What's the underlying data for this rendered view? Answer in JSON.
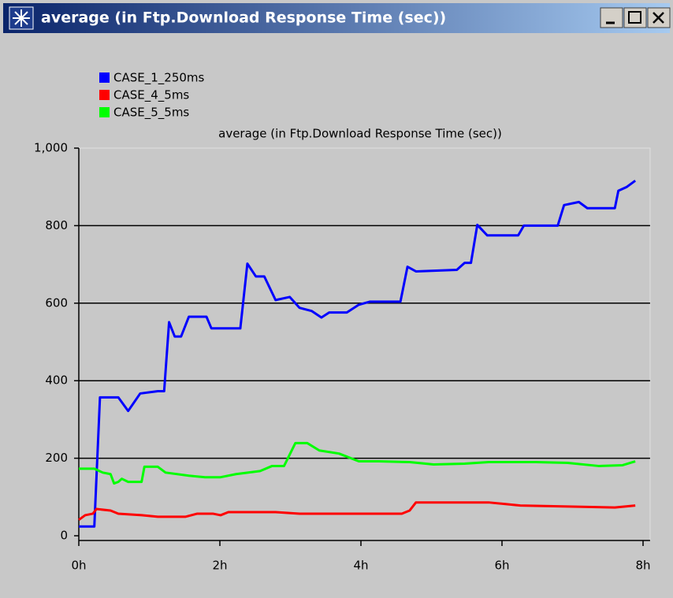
{
  "window": {
    "title": "average (in Ftp.Download Response Time (sec))"
  },
  "chart_data": {
    "type": "line",
    "title": "average (in Ftp.Download Response Time (sec))",
    "xlim": [
      0,
      8.1
    ],
    "xticks": [
      {
        "value": 0,
        "label": "0h"
      },
      {
        "value": 2,
        "label": "2h"
      },
      {
        "value": 4,
        "label": "4h"
      },
      {
        "value": 6,
        "label": "6h"
      },
      {
        "value": 8,
        "label": "8h"
      }
    ],
    "ylim": [
      0,
      1000
    ],
    "yticks": [
      0,
      200,
      400,
      600,
      800,
      {
        "value": 1000,
        "label": "1,000"
      }
    ],
    "grid": true,
    "legend": "top-left",
    "series": [
      {
        "name": "CASE_1_250ms",
        "color": "#0000ff",
        "x": [
          0,
          0.22,
          0.3,
          0.56,
          0.7,
          0.87,
          1.12,
          1.21,
          1.28,
          1.36,
          1.45,
          1.56,
          1.81,
          1.88,
          2.29,
          2.39,
          2.51,
          2.63,
          2.79,
          2.99,
          3.13,
          3.3,
          3.44,
          3.55,
          3.8,
          3.97,
          4.13,
          4.56,
          4.66,
          4.78,
          5.36,
          5.47,
          5.56,
          5.65,
          5.79,
          6.23,
          6.31,
          6.79,
          6.88,
          7.09,
          7.21,
          7.6,
          7.65,
          7.77,
          7.89
        ],
        "values": [
          24,
          24,
          357,
          357,
          322,
          367,
          373,
          373,
          551,
          514,
          514,
          565,
          565,
          535,
          535,
          702,
          669,
          669,
          608,
          616,
          588,
          580,
          563,
          576,
          576,
          596,
          604,
          604,
          694,
          682,
          686,
          704,
          704,
          802,
          775,
          775,
          800,
          800,
          853,
          861,
          845,
          845,
          890,
          900,
          916
        ]
      },
      {
        "name": "CASE_4_5ms",
        "color": "#ff0000",
        "x": [
          0,
          0.09,
          0.2,
          0.25,
          0.45,
          0.56,
          0.89,
          1.12,
          1.51,
          1.68,
          1.9,
          2.01,
          2.12,
          2.79,
          3.13,
          4.58,
          4.69,
          4.78,
          5.81,
          6.26,
          7.6,
          7.89
        ],
        "values": [
          41,
          53,
          57,
          69,
          65,
          57,
          53,
          49,
          49,
          57,
          57,
          53,
          61,
          61,
          57,
          57,
          65,
          86,
          86,
          78,
          73,
          78
        ]
      },
      {
        "name": "CASE_5_5ms",
        "color": "#00ff00",
        "x": [
          0,
          0.22,
          0.34,
          0.45,
          0.5,
          0.56,
          0.61,
          0.7,
          0.89,
          0.93,
          1.12,
          1.23,
          1.56,
          1.79,
          2.01,
          2.23,
          2.57,
          2.74,
          2.91,
          3.07,
          3.24,
          3.41,
          3.69,
          3.97,
          4.25,
          4.69,
          5.03,
          5.47,
          5.81,
          6.48,
          6.93,
          7.37,
          7.71,
          7.89
        ],
        "values": [
          173,
          173,
          163,
          159,
          135,
          139,
          147,
          139,
          139,
          178,
          178,
          163,
          155,
          151,
          151,
          159,
          167,
          180,
          180,
          239,
          239,
          220,
          212,
          192,
          192,
          190,
          184,
          186,
          190,
          190,
          188,
          180,
          182,
          192
        ]
      }
    ]
  }
}
